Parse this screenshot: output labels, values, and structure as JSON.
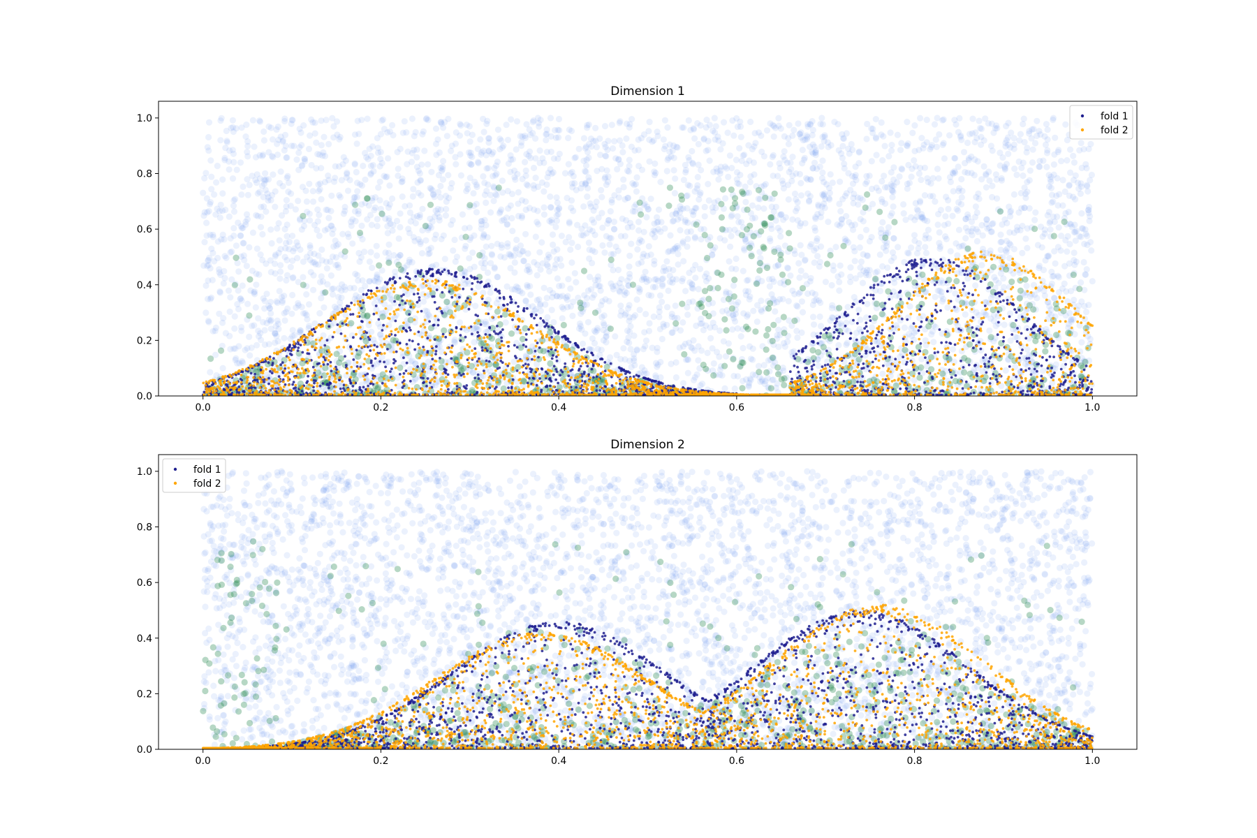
{
  "chart_data": [
    {
      "type": "scatter",
      "title": "Dimension 1",
      "xlabel": "",
      "ylabel": "",
      "xlim": [
        -0.05,
        1.05
      ],
      "ylim": [
        0,
        1.06
      ],
      "xticks": [
        "0.0",
        "0.2",
        "0.4",
        "0.6",
        "0.8",
        "1.0"
      ],
      "yticks": [
        "0.0",
        "0.2",
        "0.4",
        "0.6",
        "0.8",
        "1.0"
      ],
      "grid": false,
      "legend_position": "top-right",
      "legend": [
        "fold 1",
        "fold 2"
      ],
      "layers": {
        "background_samples": {
          "distribution": "uniform",
          "x_range": [
            0,
            1
          ],
          "y_range": [
            0,
            1
          ],
          "color": "#6495ed",
          "approx_count": 4000
        },
        "highlighted_samples": {
          "x_range": [
            0,
            1
          ],
          "y_range": [
            0,
            0.75
          ],
          "color": "#2e8b57",
          "approx_count": 800
        }
      },
      "series": [
        {
          "name": "fold 1",
          "color": "#1f1f8f",
          "bumps": [
            {
              "center": 0.26,
              "width": 0.12,
              "peak": 0.46,
              "from": 0.0,
              "to": 0.6
            },
            {
              "center": 0.82,
              "width": 0.1,
              "peak": 0.5,
              "from": 0.66,
              "to": 1.0
            }
          ]
        },
        {
          "name": "fold 2",
          "color": "#ffa500",
          "bumps": [
            {
              "center": 0.25,
              "width": 0.12,
              "peak": 0.42,
              "from": 0.0,
              "to": 0.62
            },
            {
              "center": 0.88,
              "width": 0.1,
              "peak": 0.52,
              "from": 0.66,
              "to": 1.0
            }
          ]
        }
      ]
    },
    {
      "type": "scatter",
      "title": "Dimension 2",
      "xlabel": "",
      "ylabel": "",
      "xlim": [
        -0.05,
        1.05
      ],
      "ylim": [
        0,
        1.06
      ],
      "xticks": [
        "0.0",
        "0.2",
        "0.4",
        "0.6",
        "0.8",
        "1.0"
      ],
      "yticks": [
        "0.0",
        "0.2",
        "0.4",
        "0.6",
        "0.8",
        "1.0"
      ],
      "grid": false,
      "legend_position": "top-left",
      "legend": [
        "fold 1",
        "fold 2"
      ],
      "layers": {
        "background_samples": {
          "distribution": "uniform",
          "x_range": [
            0,
            1
          ],
          "y_range": [
            0,
            1
          ],
          "color": "#6495ed",
          "approx_count": 4000
        },
        "highlighted_samples": {
          "x_range": [
            0,
            1
          ],
          "y_range": [
            0,
            0.75
          ],
          "color": "#2e8b57",
          "approx_count": 800
        }
      },
      "series": [
        {
          "name": "fold 1",
          "color": "#1f1f8f",
          "bumps": [
            {
              "center": 0.4,
              "width": 0.12,
              "peak": 0.46,
              "from": 0.0,
              "to": 0.75
            },
            {
              "center": 0.74,
              "width": 0.12,
              "peak": 0.5,
              "from": 0.45,
              "to": 1.0
            }
          ]
        },
        {
          "name": "fold 2",
          "color": "#ffa500",
          "bumps": [
            {
              "center": 0.38,
              "width": 0.12,
              "peak": 0.42,
              "from": 0.0,
              "to": 0.75
            },
            {
              "center": 0.76,
              "width": 0.12,
              "peak": 0.52,
              "from": 0.45,
              "to": 1.0
            }
          ]
        }
      ]
    }
  ]
}
